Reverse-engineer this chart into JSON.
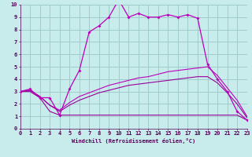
{
  "xlabel": "Windchill (Refroidissement éolien,°C)",
  "bg_color": "#c8ecec",
  "grid_color": "#a0cccc",
  "line_color": "#bb00bb",
  "line_color2": "#990099",
  "xmin": 0,
  "xmax": 23,
  "ymin": 0,
  "ymax": 10,
  "series1_x": [
    0,
    1,
    2,
    3,
    4,
    5,
    6,
    7,
    8,
    9,
    10,
    11,
    12,
    13,
    14,
    15,
    16,
    17,
    18,
    19,
    20,
    21,
    22,
    23
  ],
  "series1_y": [
    3.0,
    3.2,
    2.5,
    2.5,
    1.1,
    3.2,
    4.7,
    7.8,
    8.3,
    9.0,
    10.4,
    9.0,
    9.3,
    9.0,
    9.0,
    9.2,
    9.0,
    9.2,
    8.9,
    5.2,
    4.0,
    3.0,
    1.4,
    0.7
  ],
  "series2_x": [
    0,
    1,
    2,
    3,
    4,
    5,
    6,
    7,
    8,
    9,
    10,
    11,
    12,
    13,
    14,
    15,
    16,
    17,
    18,
    19,
    20,
    21,
    22,
    23
  ],
  "series2_y": [
    3.0,
    3.0,
    2.5,
    1.4,
    1.1,
    1.1,
    1.1,
    1.1,
    1.1,
    1.1,
    1.1,
    1.1,
    1.1,
    1.1,
    1.1,
    1.1,
    1.1,
    1.1,
    1.1,
    1.1,
    1.1,
    1.1,
    1.1,
    0.7
  ],
  "series3_x": [
    0,
    1,
    2,
    3,
    4,
    5,
    6,
    7,
    8,
    9,
    10,
    11,
    12,
    13,
    14,
    15,
    16,
    17,
    18,
    19,
    20,
    21,
    22,
    23
  ],
  "series3_y": [
    3.0,
    3.1,
    2.6,
    1.9,
    1.5,
    2.1,
    2.6,
    2.9,
    3.2,
    3.5,
    3.7,
    3.9,
    4.1,
    4.2,
    4.4,
    4.6,
    4.7,
    4.8,
    4.9,
    5.0,
    4.3,
    3.3,
    2.3,
    1.0
  ],
  "series4_x": [
    0,
    1,
    2,
    3,
    4,
    5,
    6,
    7,
    8,
    9,
    10,
    11,
    12,
    13,
    14,
    15,
    16,
    17,
    18,
    19,
    20,
    21,
    22,
    23
  ],
  "series4_y": [
    3.0,
    3.1,
    2.6,
    1.9,
    1.4,
    1.9,
    2.3,
    2.6,
    2.9,
    3.1,
    3.3,
    3.5,
    3.6,
    3.7,
    3.8,
    3.9,
    4.0,
    4.1,
    4.2,
    4.2,
    3.7,
    2.9,
    2.0,
    0.9
  ]
}
